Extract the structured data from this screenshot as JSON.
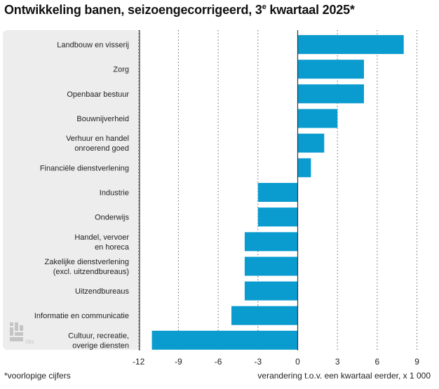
{
  "title": {
    "main": "Ontwikkeling banen, seizoengecorrigeerd, 3",
    "sup": "e",
    "rest": " kwartaal 2025*"
  },
  "footnote": "*voorlopige cijfers",
  "logo_text": "cbs",
  "colors": {
    "bar": "#0A9BCF",
    "panel": "#EDEDED",
    "grid": "#666666",
    "zero": "#333333"
  },
  "chart_data": {
    "type": "bar",
    "orientation": "horizontal",
    "title": "Ontwikkeling banen, seizoengecorrigeerd, 3e kwartaal 2025*",
    "xlabel": "verandering t.o.v. een kwartaal eerder, x 1 000",
    "ylabel": "",
    "xlim": [
      -12,
      10
    ],
    "ticks": [
      -12,
      -9,
      -6,
      -3,
      0,
      3,
      6,
      9
    ],
    "tick_labels": [
      "-12",
      "-9",
      "-6",
      "-3",
      "0",
      "3",
      "6",
      "9"
    ],
    "categories": [
      [
        "Landbouw en visserij"
      ],
      [
        "Zorg"
      ],
      [
        "Openbaar bestuur"
      ],
      [
        "Bouwnijverheid"
      ],
      [
        "Verhuur en handel",
        "onroerend goed"
      ],
      [
        "Financiële dienstverlening"
      ],
      [
        "Industrie"
      ],
      [
        "Onderwijs"
      ],
      [
        "Handel, vervoer",
        "en horeca"
      ],
      [
        "Zakelijke dienstverlening",
        "(excl. uitzendbureaus)"
      ],
      [
        "Uitzendbureaus"
      ],
      [
        "Informatie en communicatie"
      ],
      [
        "Cultuur, recreatie,",
        "overige diensten"
      ]
    ],
    "values": [
      8,
      5,
      5,
      3,
      2,
      1,
      -3,
      -3,
      -4,
      -4,
      -4,
      -5,
      -11
    ]
  }
}
